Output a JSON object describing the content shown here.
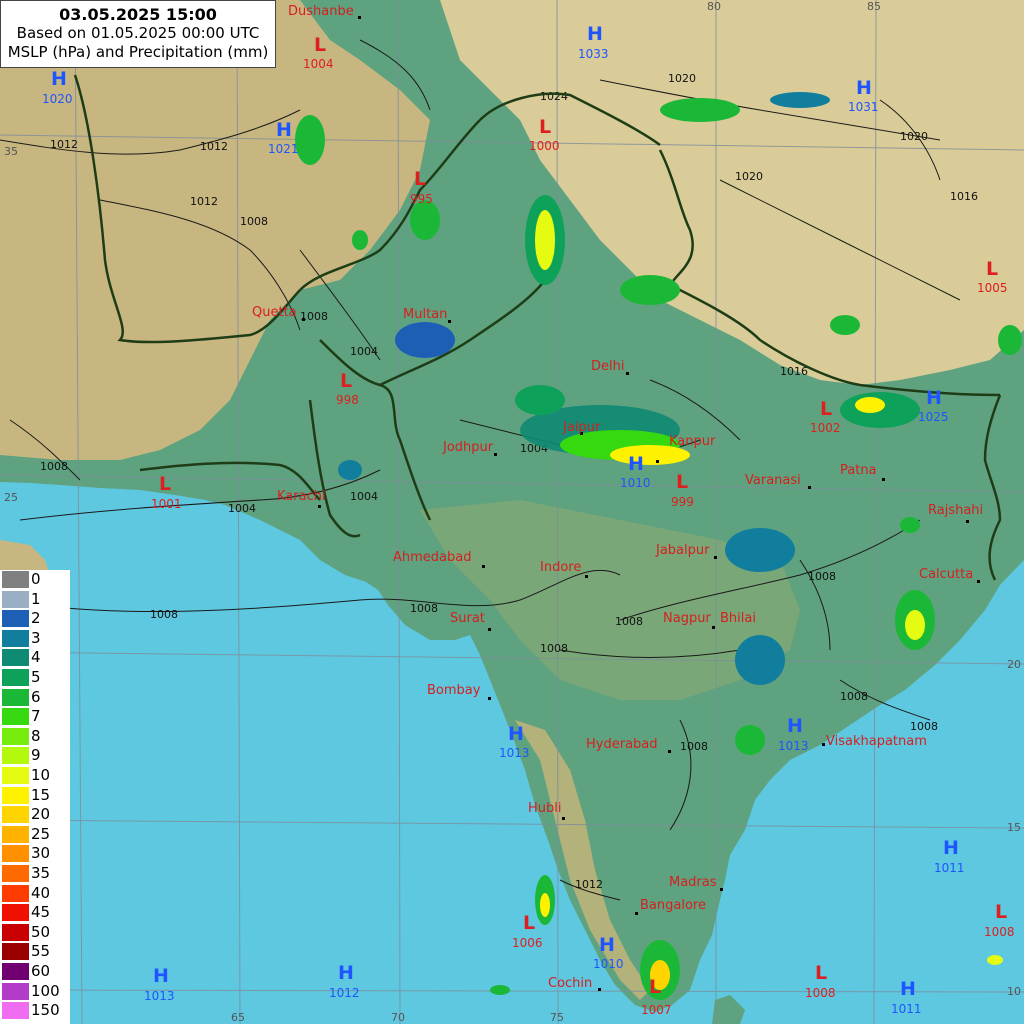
{
  "header": {
    "valid_time": "03.05.2025 15:00",
    "run_info": "Based on 01.05.2025 00:00 UTC",
    "field": "MSLP (hPa) and Precipitation (mm)"
  },
  "colors": {
    "sea": "#5ec8e0",
    "lowland": "#5fa27f",
    "highland": "#c8b680",
    "mountain": "#d9cc98",
    "border": "#1e3d16",
    "city_label": "#d42020",
    "high_marker": "#1f55ff",
    "low_marker": "#dd1f1f"
  },
  "legend": [
    {
      "label": "0",
      "color": "#808080"
    },
    {
      "label": "1",
      "color": "#9aaec4"
    },
    {
      "label": "2",
      "color": "#1d5fb4"
    },
    {
      "label": "3",
      "color": "#117e9e"
    },
    {
      "label": "4",
      "color": "#0f8a73"
    },
    {
      "label": "5",
      "color": "#0ea15a"
    },
    {
      "label": "6",
      "color": "#1bb838"
    },
    {
      "label": "7",
      "color": "#36d80f"
    },
    {
      "label": "8",
      "color": "#76ec0c"
    },
    {
      "label": "9",
      "color": "#b4f80d"
    },
    {
      "label": "10",
      "color": "#e6fb12"
    },
    {
      "label": "15",
      "color": "#fff200"
    },
    {
      "label": "20",
      "color": "#ffd400"
    },
    {
      "label": "25",
      "color": "#ffb200"
    },
    {
      "label": "30",
      "color": "#ff9100"
    },
    {
      "label": "35",
      "color": "#ff6a00"
    },
    {
      "label": "40",
      "color": "#ff3c00"
    },
    {
      "label": "45",
      "color": "#f01000"
    },
    {
      "label": "50",
      "color": "#c80000"
    },
    {
      "label": "55",
      "color": "#9a0000"
    },
    {
      "label": "60",
      "color": "#700070"
    },
    {
      "label": "100",
      "color": "#b23cc8"
    },
    {
      "label": "150",
      "color": "#f06cf0"
    }
  ],
  "grid_labels": [
    "80",
    "85",
    "35",
    "25",
    "20",
    "15",
    "10",
    "65",
    "70",
    "75"
  ],
  "cities": [
    "Dushanbe",
    "Quetta",
    "Multan",
    "Delhi",
    "Jodhpur",
    "Jaipur",
    "Kanpur",
    "Varanasi",
    "Patna",
    "Rajshahi",
    "Karachi",
    "Ahmedabad",
    "Indore",
    "Jabalpur",
    "Calcutta",
    "Surat",
    "Nagpur",
    "Bhilai",
    "Bombay",
    "Hyderabad",
    "Visakhapatnam",
    "Hubli",
    "Madras",
    "Bangalore",
    "Cochin"
  ],
  "isobar_labels": [
    "1012",
    "1012",
    "1008",
    "1008",
    "1004",
    "1004",
    "1004",
    "1008",
    "1008",
    "1008",
    "1012",
    "1016",
    "1020",
    "1020",
    "1024",
    "1020",
    "1008",
    "1004",
    "1008",
    "1008",
    "1008",
    "1012",
    "1008",
    "1008",
    "1016"
  ],
  "pressure_centers": [
    {
      "type": "L",
      "value": "1004"
    },
    {
      "type": "H",
      "value": "1033"
    },
    {
      "type": "H",
      "value": "1020"
    },
    {
      "type": "H",
      "value": "1021"
    },
    {
      "type": "L",
      "value": "1000"
    },
    {
      "type": "L",
      "value": "995"
    },
    {
      "type": "H",
      "value": "1031"
    },
    {
      "type": "L",
      "value": "1005"
    },
    {
      "type": "L",
      "value": "998"
    },
    {
      "type": "L",
      "value": "1002"
    },
    {
      "type": "H",
      "value": "1025"
    },
    {
      "type": "H",
      "value": "1010"
    },
    {
      "type": "L",
      "value": "999"
    },
    {
      "type": "L",
      "value": "1001"
    },
    {
      "type": "H",
      "value": "1013"
    },
    {
      "type": "H",
      "value": "1013"
    },
    {
      "type": "H",
      "value": "1011"
    },
    {
      "type": "L",
      "value": "1008"
    },
    {
      "type": "L",
      "value": "1006"
    },
    {
      "type": "H",
      "value": "1010"
    },
    {
      "type": "H",
      "value": "1013"
    },
    {
      "type": "H",
      "value": "1012"
    },
    {
      "type": "L",
      "value": "1008"
    },
    {
      "type": "H",
      "value": "1011"
    },
    {
      "type": "L",
      "value": "1007"
    }
  ]
}
